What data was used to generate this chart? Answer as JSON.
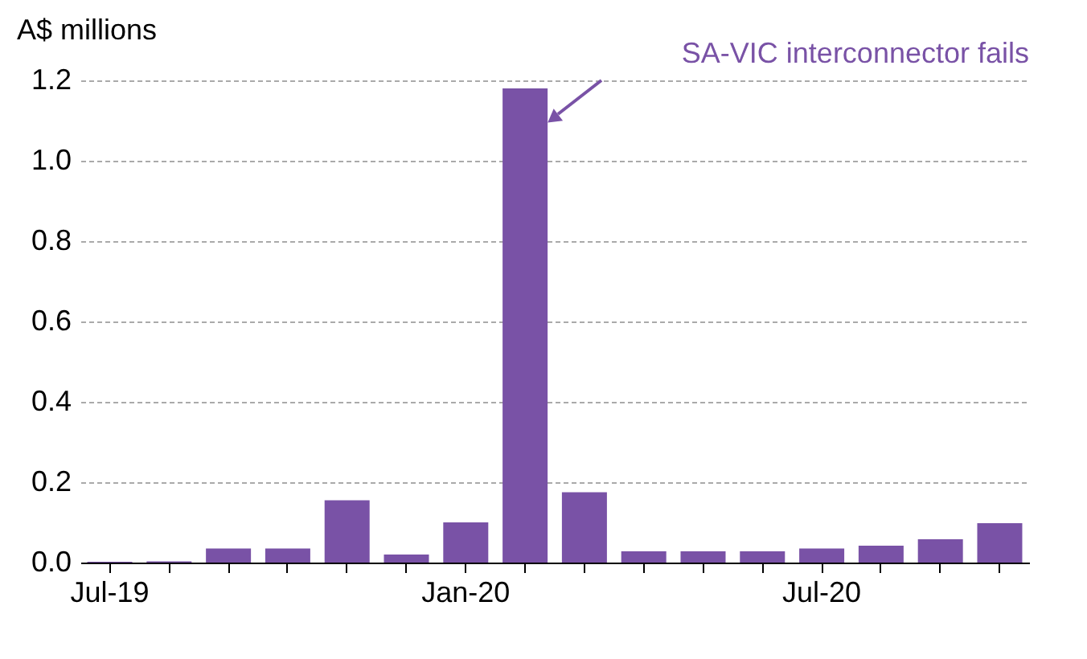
{
  "chart_data": {
    "type": "bar",
    "ylabel": "A$ millions",
    "categories": [
      "Jul-19",
      null,
      null,
      null,
      null,
      null,
      "Jan-20",
      null,
      null,
      null,
      null,
      null,
      "Jul-20",
      null,
      null,
      null
    ],
    "values": [
      0.002,
      0.003,
      0.035,
      0.035,
      0.155,
      0.02,
      0.1,
      1.18,
      0.175,
      0.028,
      0.028,
      0.028,
      0.035,
      0.042,
      0.058,
      0.098
    ],
    "color": "#7952a6",
    "ylim": [
      0,
      1.2
    ],
    "yticks": [
      {
        "value": 0,
        "label": "0.0"
      },
      0.2,
      0.4,
      0.6,
      0.8,
      {
        "value": 1,
        "label": "1.0"
      },
      1.2
    ],
    "grid": "y",
    "annotations": [
      "SA-VIC  interconnector fails"
    ]
  }
}
